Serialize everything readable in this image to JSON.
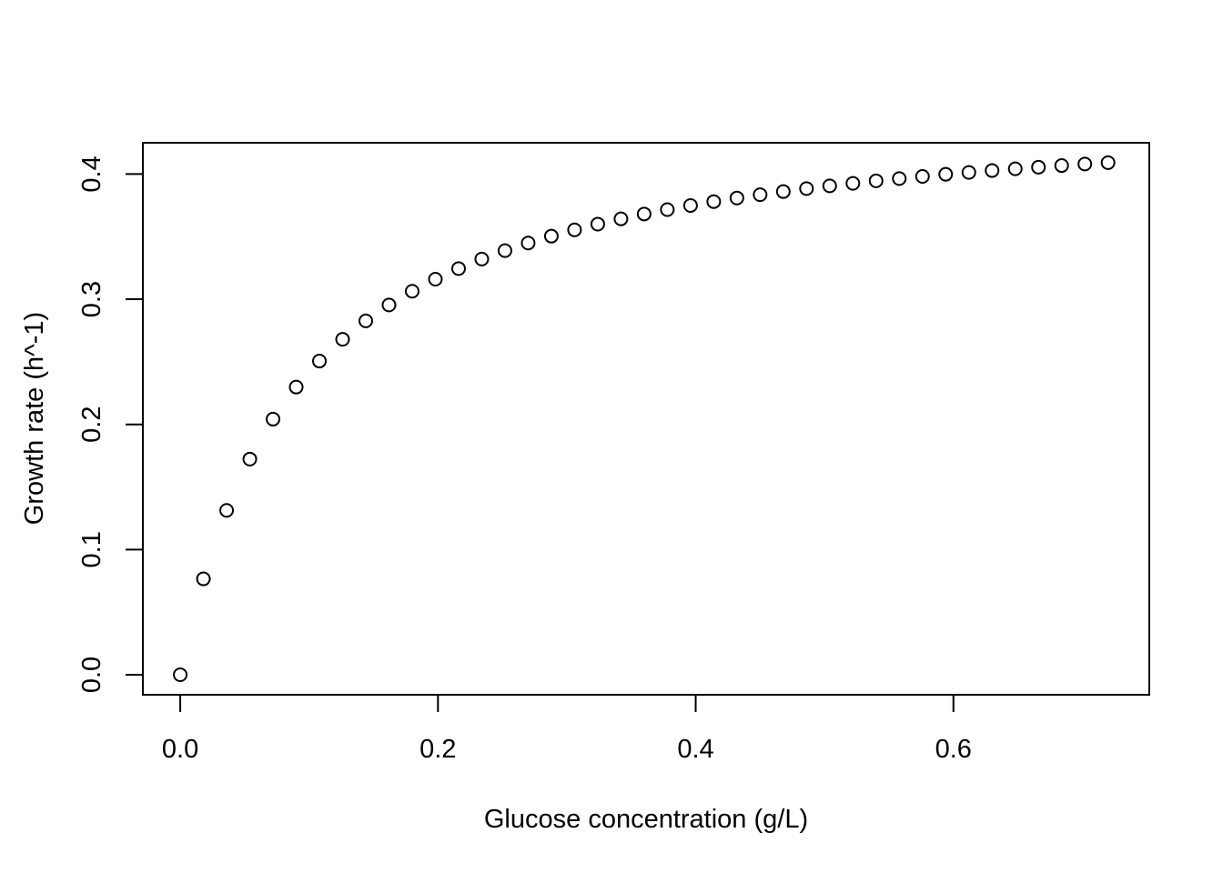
{
  "chart_data": {
    "type": "scatter",
    "title": "",
    "xlabel": "Glucose concentration (g/L)",
    "ylabel": "Growth rate (h^-1)",
    "xlim": [
      -0.029,
      0.752
    ],
    "ylim": [
      -0.016,
      0.425
    ],
    "xticks": [
      0.0,
      0.2,
      0.4,
      0.6
    ],
    "xtick_labels": [
      "0.0",
      "0.2",
      "0.4",
      "0.6"
    ],
    "yticks": [
      0.0,
      0.1,
      0.2,
      0.3,
      0.4
    ],
    "ytick_labels": [
      "0.0",
      "0.1",
      "0.2",
      "0.3",
      "0.4"
    ],
    "grid": false,
    "legend": "none",
    "marker": "open-circle",
    "x": [
      0.0,
      0.018,
      0.036,
      0.054,
      0.072,
      0.09,
      0.108,
      0.126,
      0.144,
      0.162,
      0.18,
      0.198,
      0.216,
      0.234,
      0.252,
      0.27,
      0.288,
      0.306,
      0.324,
      0.342,
      0.36,
      0.378,
      0.396,
      0.414,
      0.432,
      0.45,
      0.468,
      0.486,
      0.504,
      0.522,
      0.54,
      0.558,
      0.576,
      0.594,
      0.612,
      0.63,
      0.648,
      0.666,
      0.684,
      0.702,
      0.72
    ],
    "y": [
      0.0,
      0.0766,
      0.1313,
      0.1723,
      0.2042,
      0.2298,
      0.2506,
      0.268,
      0.2827,
      0.2954,
      0.3064,
      0.316,
      0.3245,
      0.3321,
      0.3388,
      0.3449,
      0.3504,
      0.3554,
      0.36,
      0.3642,
      0.3681,
      0.3716,
      0.3749,
      0.378,
      0.3809,
      0.3835,
      0.386,
      0.3884,
      0.3906,
      0.3926,
      0.3946,
      0.3964,
      0.3981,
      0.3998,
      0.4013,
      0.4028,
      0.4042,
      0.4055,
      0.4068,
      0.408,
      0.4091
    ]
  }
}
